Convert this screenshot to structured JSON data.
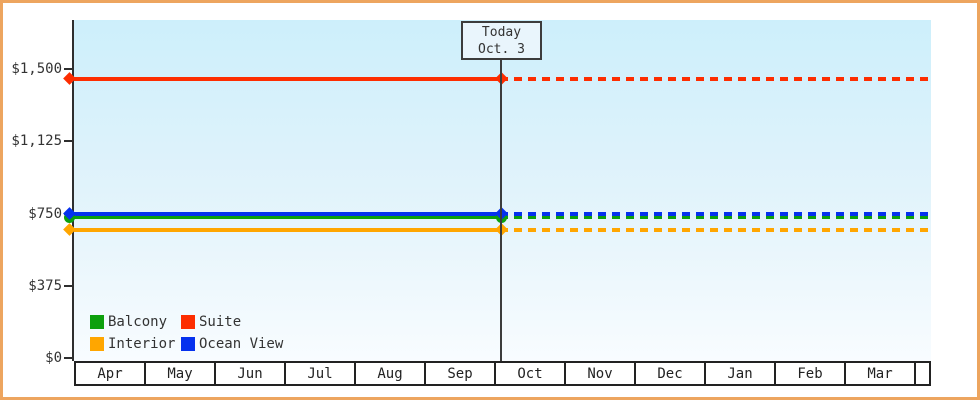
{
  "window": {
    "frame_color": "#eda55f",
    "plot_bg_top": "#cdeffb",
    "plot_bg_bottom": "#f8fcff",
    "axis_color": "#2e2e2e",
    "text_color": "#333333"
  },
  "today_marker": {
    "label": "Today",
    "date_label": "Oct. 3",
    "month_index": 6,
    "day": 3,
    "line_color": "#3c3c3c",
    "box_fill": "#e9f5fc"
  },
  "chart_data": {
    "type": "line",
    "title": "",
    "xlabel": "",
    "ylabel": "",
    "x_categories": [
      "Apr",
      "May",
      "Jun",
      "Jul",
      "Aug",
      "Sep",
      "Oct",
      "Nov",
      "Dec",
      "Jan",
      "Feb",
      "Mar"
    ],
    "y_axis": {
      "ticks": [
        {
          "label": "$0",
          "value": 0
        },
        {
          "label": "$375",
          "value": 375
        },
        {
          "label": "$750",
          "value": 750
        },
        {
          "label": "$1,125",
          "value": 1125
        },
        {
          "label": "$1,500",
          "value": 1500
        }
      ],
      "ylim": [
        0,
        1755
      ]
    },
    "series": [
      {
        "name": "Balcony",
        "value": 730,
        "color": "#0da00d",
        "marker": "circle",
        "style": "solid-then-dashed"
      },
      {
        "name": "Suite",
        "value": 1450,
        "color": "#fd2d00",
        "marker": "diamond",
        "style": "solid-then-dashed"
      },
      {
        "name": "Interior",
        "value": 665,
        "color": "#ffa600",
        "marker": "diamond",
        "style": "solid-then-dashed"
      },
      {
        "name": "Ocean View",
        "value": 750,
        "color": "#0531ee",
        "marker": "diamond",
        "style": "solid-then-dashed"
      }
    ],
    "draw_order": [
      2,
      0,
      3,
      1
    ],
    "legend_position": "bottom-left",
    "grid": false,
    "annotation": "Lines are solid up to the Today (Oct. 3) marker and dashed projections afterward"
  }
}
